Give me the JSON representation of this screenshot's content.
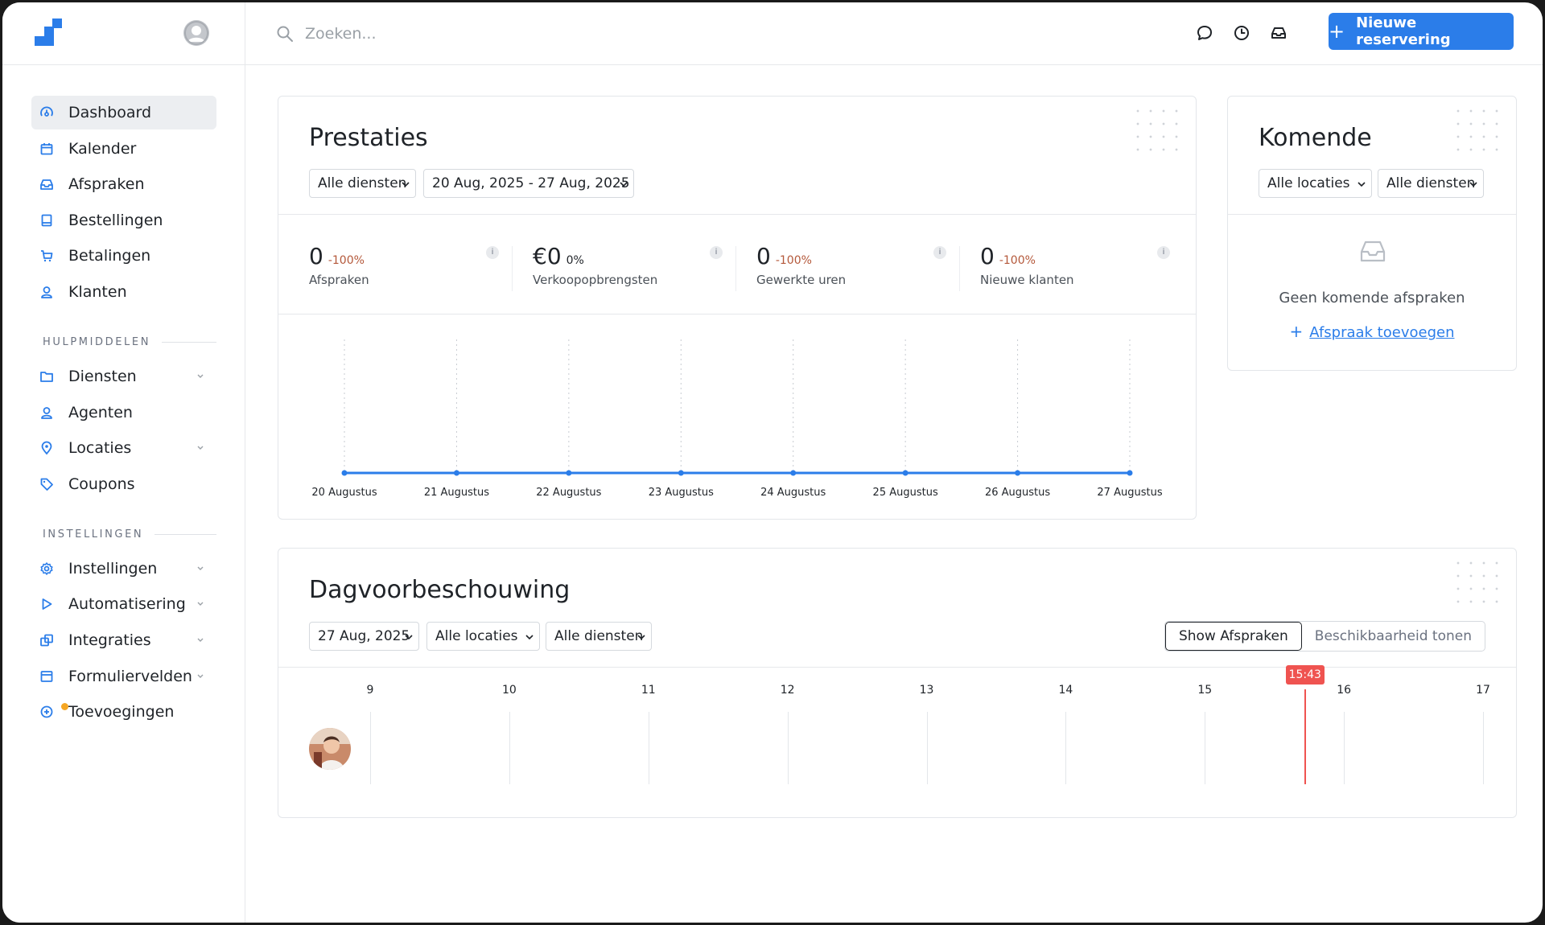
{
  "colors": {
    "accent": "#2b7de9",
    "negative": "#b4583a",
    "now": "#ef5350",
    "badge": "#f5a623"
  },
  "topbar": {
    "search_placeholder": "Zoeken...",
    "icons": [
      "chat-icon",
      "clock-icon",
      "inbox-icon"
    ],
    "new_button_label": "Nieuwe reservering"
  },
  "sidebar": {
    "items": [
      {
        "label": "Dashboard",
        "icon": "dashboard-icon",
        "active": true
      },
      {
        "label": "Kalender",
        "icon": "calendar-icon"
      },
      {
        "label": "Afspraken",
        "icon": "inbox-icon"
      },
      {
        "label": "Bestellingen",
        "icon": "book-icon"
      },
      {
        "label": "Betalingen",
        "icon": "cart-icon"
      },
      {
        "label": "Klanten",
        "icon": "user-icon"
      }
    ],
    "section_tools": "HULPMIDDELEN",
    "tools": [
      {
        "label": "Diensten",
        "icon": "folder-icon",
        "expandable": true
      },
      {
        "label": "Agenten",
        "icon": "user-icon"
      },
      {
        "label": "Locaties",
        "icon": "pin-icon",
        "expandable": true
      },
      {
        "label": "Coupons",
        "icon": "tag-icon"
      }
    ],
    "section_settings": "INSTELLINGEN",
    "settings": [
      {
        "label": "Instellingen",
        "icon": "gear-icon",
        "expandable": true
      },
      {
        "label": "Automatisering",
        "icon": "play-icon",
        "expandable": true
      },
      {
        "label": "Integraties",
        "icon": "integrations-icon",
        "expandable": true
      },
      {
        "label": "Formuliervelden",
        "icon": "form-icon",
        "expandable": true
      },
      {
        "label": "Toevoegingen",
        "icon": "plus-circle-icon",
        "badge": true
      }
    ]
  },
  "performance": {
    "title": "Prestaties",
    "filter_service": "Alle diensten",
    "filter_range": "20 Aug, 2025 - 27 Aug, 2025",
    "stats": [
      {
        "value": "0",
        "change": "-100%",
        "label": "Afspraken"
      },
      {
        "value": "€0",
        "change": "0%",
        "label": "Verkoopopbrengsten"
      },
      {
        "value": "0",
        "change": "-100%",
        "label": "Gewerkte uren"
      },
      {
        "value": "0",
        "change": "-100%",
        "label": "Nieuwe klanten"
      }
    ],
    "info": "i"
  },
  "chart_data": {
    "type": "line",
    "categories": [
      "20 Augustus",
      "21 Augustus",
      "22 Augustus",
      "23 Augustus",
      "24 Augustus",
      "25 Augustus",
      "26 Augustus",
      "27 Augustus"
    ],
    "values": [
      0,
      0,
      0,
      0,
      0,
      0,
      0,
      0
    ],
    "title": "",
    "xlabel": "",
    "ylabel": "",
    "grid": "vertical-dotted"
  },
  "upcoming": {
    "title": "Komende",
    "filter_location": "Alle locaties",
    "filter_service": "Alle diensten",
    "empty_text": "Geen komende afspraken",
    "add_label": "Afspraak toevoegen"
  },
  "day": {
    "title": "Dagvoorbeschouwing",
    "filter_date": "27 Aug, 2025",
    "filter_location": "Alle locaties",
    "filter_service": "Alle diensten",
    "toggle_on": "Show Afspraken",
    "toggle_off": "Beschikbaarheid tonen",
    "hours": [
      "9",
      "10",
      "11",
      "12",
      "13",
      "14",
      "15",
      "16",
      "17"
    ],
    "now_label": "15:43",
    "now_hour": 15.72
  }
}
